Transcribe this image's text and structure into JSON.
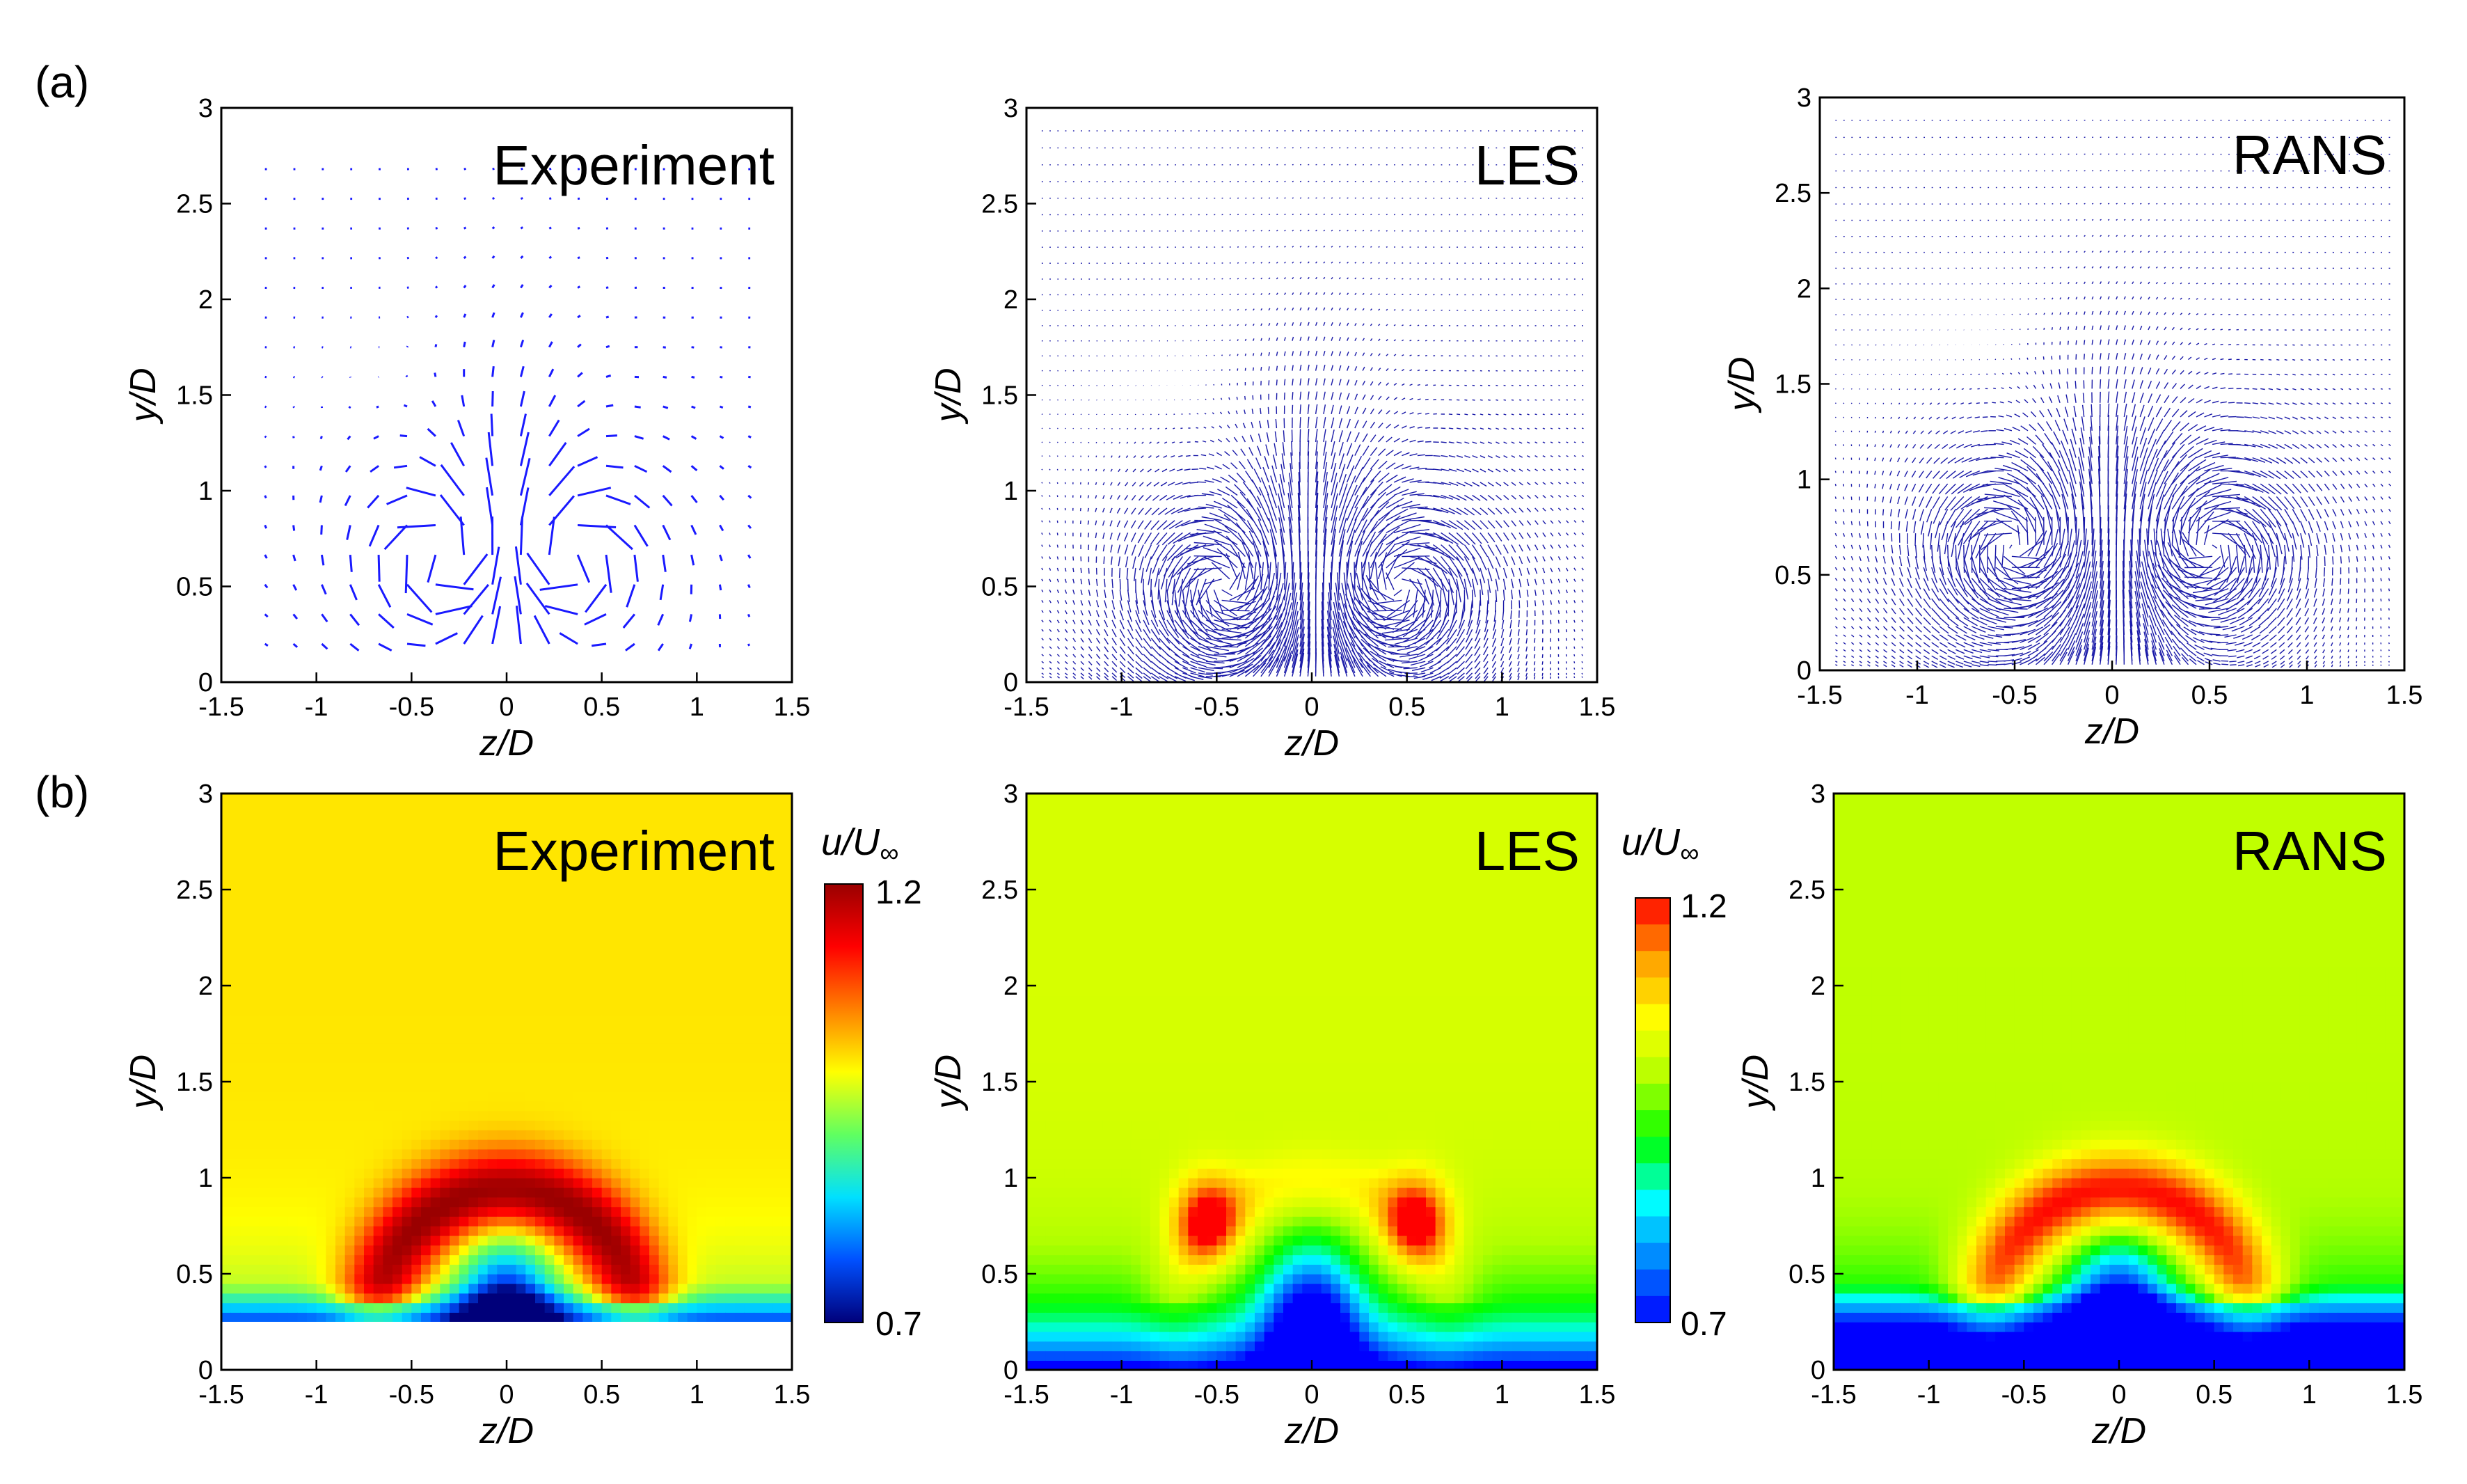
{
  "figure": {
    "row_labels": [
      "(a)",
      "(b)"
    ]
  },
  "chart_data": [
    {
      "id": "a-exp",
      "type": "quiver",
      "row": 0,
      "col": 0,
      "title": "Experiment",
      "xlabel": "z/D",
      "ylabel": "y/D",
      "xlim": [
        -1.5,
        1.5
      ],
      "ylim": [
        0,
        3
      ],
      "xticks": [
        "-1.5",
        "-1",
        "-0.5",
        "0",
        "0.5",
        "1",
        "1.5"
      ],
      "yticks": [
        "0",
        "0.5",
        "1",
        "1.5",
        "2",
        "2.5",
        "3"
      ],
      "color": "#1a1aff",
      "style": "experiment"
    },
    {
      "id": "a-les",
      "type": "quiver",
      "row": 0,
      "col": 1,
      "title": "LES",
      "xlabel": "z/D",
      "ylabel": "y/D",
      "xlim": [
        -1.5,
        1.5
      ],
      "ylim": [
        0,
        3
      ],
      "xticks": [
        "-1.5",
        "-1",
        "-0.5",
        "0",
        "0.5",
        "1",
        "1.5"
      ],
      "yticks": [
        "0",
        "0.5",
        "1",
        "1.5",
        "2",
        "2.5",
        "3"
      ],
      "color": "#1a1aa8",
      "style": "les"
    },
    {
      "id": "a-rans",
      "type": "quiver",
      "row": 0,
      "col": 2,
      "title": "RANS",
      "xlabel": "z/D",
      "ylabel": "y/D",
      "xlim": [
        -1.5,
        1.5
      ],
      "ylim": [
        0,
        3
      ],
      "xticks": [
        "-1.5",
        "-1",
        "-0.5",
        "0",
        "0.5",
        "1",
        "1.5"
      ],
      "yticks": [
        "0",
        "0.5",
        "1",
        "1.5",
        "2",
        "2.5",
        "3"
      ],
      "color": "#1a1aa8",
      "style": "rans"
    },
    {
      "id": "b-exp",
      "type": "heatmap",
      "row": 1,
      "col": 0,
      "title": "Experiment",
      "xlabel": "z/D",
      "ylabel": "y/D",
      "xlim": [
        -1.5,
        1.5
      ],
      "ylim": [
        0,
        3
      ],
      "xticks": [
        "-1.5",
        "-1",
        "-0.5",
        "0",
        "0.5",
        "1",
        "1.5"
      ],
      "yticks": [
        "0",
        "0.5",
        "1",
        "1.5",
        "2",
        "2.5",
        "3"
      ],
      "variable": "u/U∞",
      "vrange": [
        0.7,
        1.2
      ],
      "mask_below_y": 0.25,
      "style": "experiment"
    },
    {
      "id": "b-les",
      "type": "heatmap",
      "row": 1,
      "col": 1,
      "title": "LES",
      "xlabel": "z/D",
      "ylabel": "y/D",
      "xlim": [
        -1.5,
        1.5
      ],
      "ylim": [
        0,
        3
      ],
      "xticks": [
        "-1.5",
        "-1",
        "-0.5",
        "0",
        "0.5",
        "1",
        "1.5"
      ],
      "yticks": [
        "0",
        "0.5",
        "1",
        "1.5",
        "2",
        "2.5",
        "3"
      ],
      "variable": "u/U∞",
      "vrange": [
        0.7,
        1.2
      ],
      "style": "les"
    },
    {
      "id": "b-rans",
      "type": "heatmap",
      "row": 1,
      "col": 2,
      "title": "RANS",
      "xlabel": "z/D",
      "ylabel": "y/D",
      "xlim": [
        -1.5,
        1.5
      ],
      "ylim": [
        0,
        3
      ],
      "xticks": [
        "-1.5",
        "-1",
        "-0.5",
        "0",
        "0.5",
        "1",
        "1.5"
      ],
      "yticks": [
        "0",
        "0.5",
        "1",
        "1.5",
        "2",
        "2.5",
        "3"
      ],
      "variable": "u/U∞",
      "vrange": [
        0.7,
        1.2
      ],
      "style": "rans"
    }
  ],
  "colorbars": [
    {
      "id": "cb-exp",
      "title_main": "u/U",
      "title_sub": "∞",
      "min_label": "0.7",
      "max_label": "1.2",
      "stops": [
        "#00007a",
        "#0050ff",
        "#00e0ff",
        "#60ff60",
        "#ffff00",
        "#ff8000",
        "#ff0000",
        "#9a0000"
      ],
      "banded": false
    },
    {
      "id": "cb-les",
      "title_main": "u/U",
      "title_sub": "∞",
      "min_label": "0.7",
      "max_label": "1.2",
      "stops": [
        "#0000ff",
        "#0080ff",
        "#00ffff",
        "#00ff00",
        "#b0ff00",
        "#ffff00",
        "#ffa000",
        "#ff0000"
      ],
      "banded": true
    }
  ]
}
